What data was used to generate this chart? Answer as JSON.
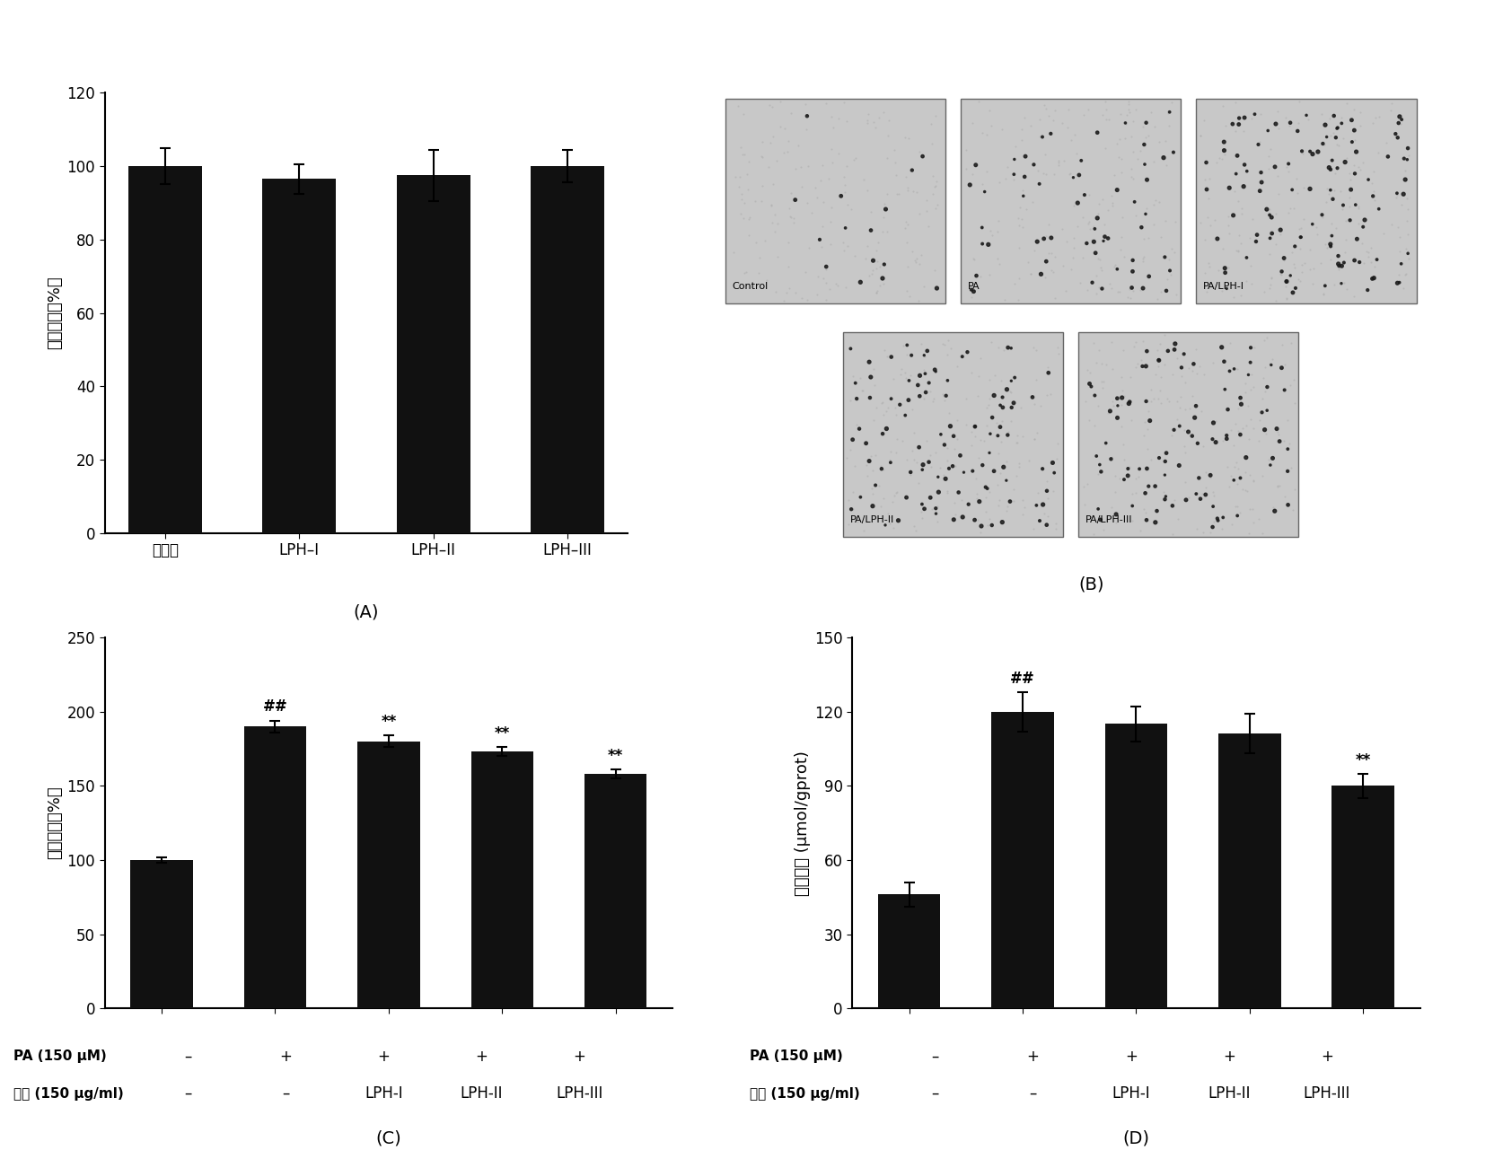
{
  "panel_A": {
    "categories": [
      "对照组",
      "LPH–I",
      "LPH–II",
      "LPH–III"
    ],
    "values": [
      100,
      96.5,
      97.5,
      100
    ],
    "errors": [
      5,
      4,
      7,
      4.5
    ],
    "ylabel": "细胞活力（%）",
    "ylim": [
      0,
      120
    ],
    "yticks": [
      0,
      20,
      40,
      60,
      80,
      100,
      120
    ],
    "bar_color": "#111111",
    "capsize": 4
  },
  "panel_C": {
    "values": [
      100,
      190,
      180,
      173,
      158
    ],
    "errors": [
      2,
      4,
      4,
      3,
      3
    ],
    "annotations": [
      "",
      "##",
      "**",
      "**",
      "**"
    ],
    "ylabel": "脂质含量（%）",
    "ylim": [
      0,
      250
    ],
    "yticks": [
      0,
      50,
      100,
      150,
      200,
      250
    ],
    "bar_color": "#111111",
    "capsize": 4,
    "pa_row": [
      "–",
      "+",
      "+",
      "+",
      "+"
    ],
    "sample_row": [
      "–",
      "–",
      "LPH-I",
      "LPH-II",
      "LPH-III"
    ],
    "pa_label": "PA (150 μM)",
    "sample_label": "样品 (150 μg/ml)"
  },
  "panel_D": {
    "values": [
      46,
      120,
      115,
      111,
      90
    ],
    "errors": [
      5,
      8,
      7,
      8,
      5
    ],
    "annotations": [
      "",
      "##",
      "",
      "",
      "**"
    ],
    "ylabel": "甘油三酔 (μmol/gprot)",
    "ylim": [
      0,
      150
    ],
    "yticks": [
      0,
      30,
      60,
      90,
      120,
      150
    ],
    "bar_color": "#111111",
    "capsize": 4,
    "pa_row": [
      "–",
      "+",
      "+",
      "+",
      "+"
    ],
    "sample_row": [
      "–",
      "–",
      "LPH-I",
      "LPH-II",
      "LPH-III"
    ],
    "pa_label": "PA (150 μM)",
    "sample_label": "样品 (150 μg/ml)"
  },
  "panel_B": {
    "labels": [
      "Control",
      "PA",
      "PA/LPH-I",
      "PA/LPH-II",
      "PA/LPH-III"
    ],
    "dot_counts": [
      15,
      60,
      120,
      110,
      105
    ]
  },
  "figure": {
    "bg_color": "#ffffff",
    "label_A": "(A)",
    "label_B": "(B)",
    "label_C": "(C)",
    "label_D": "(D)"
  }
}
